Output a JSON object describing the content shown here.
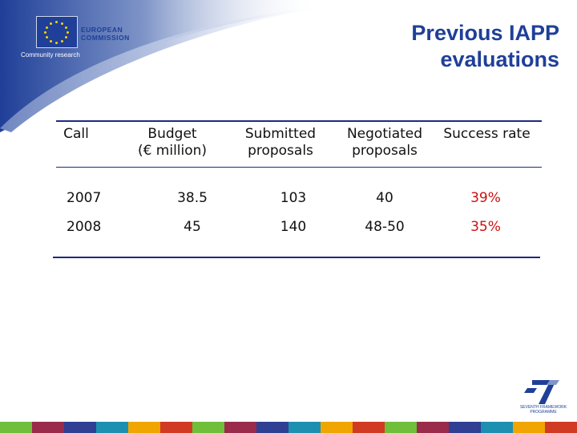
{
  "logo": {
    "line1": "EUROPEAN",
    "line2": "COMMISSION",
    "subtitle": "Community research"
  },
  "slide": {
    "title_line1": "Previous IAPP",
    "title_line2": "evaluations"
  },
  "table": {
    "headers": {
      "call": "Call",
      "budget_line1": "Budget",
      "budget_line2": "(€ million)",
      "submitted_line1": "Submitted",
      "submitted_line2": "proposals",
      "negotiated_line1": "Negotiated",
      "negotiated_line2": "proposals",
      "success": "Success rate"
    },
    "rows": [
      {
        "call": "2007",
        "budget": "38.5",
        "submitted": "103",
        "negotiated": "40",
        "success": "39%"
      },
      {
        "call": "2008",
        "budget": "45",
        "submitted": "140",
        "negotiated": "48-50",
        "success": "35%"
      }
    ]
  },
  "footer": {
    "fp7_line1": "SEVENTH FRAMEWORK",
    "fp7_line2": "PROGRAMME"
  },
  "colors": {
    "title": "#1f3f98",
    "highlight": "#cc1010",
    "rule": "#1f2a80"
  }
}
